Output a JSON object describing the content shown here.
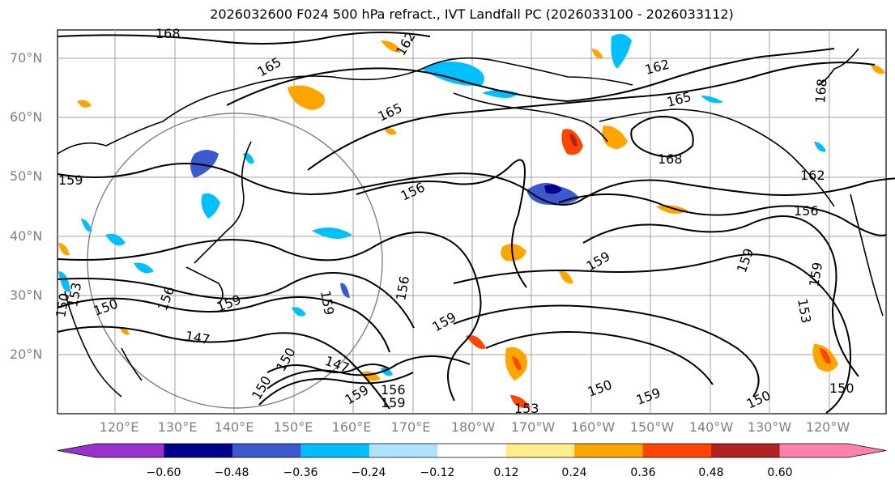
{
  "title": "2026032600 F024 500 hPa refract., IVT Landfall PC (2026033100 - 2026033112)",
  "lat_labels": [
    "70°N",
    "60°N",
    "50°N",
    "40°N",
    "30°N",
    "20°N"
  ],
  "lon_labels": [
    "120°E",
    "130°E",
    "140°E",
    "150°E",
    "160°E",
    "170°E",
    "180°W",
    "170°W",
    "160°W",
    "150°W",
    "140°W",
    "130°W",
    "120°W"
  ],
  "contour_labels": [
    "168",
    "165",
    "162",
    "165",
    "162",
    "168",
    "165",
    "168",
    "159",
    "156",
    "162",
    "156",
    "159",
    "159",
    "159",
    "156",
    "150",
    "159",
    "147",
    "159",
    "147",
    "150",
    "159",
    "156",
    "159",
    "156",
    "159",
    "153",
    "150",
    "159",
    "150",
    "153",
    "150",
    "150",
    "150",
    "153"
  ],
  "colorbar": {
    "ticks": [
      "−0.60",
      "−0.48",
      "−0.36",
      "−0.24",
      "−0.12",
      "0.12",
      "0.24",
      "0.36",
      "0.48",
      "0.60"
    ],
    "colors": [
      "#9932cc",
      "#00008b",
      "#3a5acd",
      "#00bfff",
      "#b0e2ff",
      "#ffffff",
      "#ffec8b",
      "#ffa500",
      "#ff4500",
      "#b22222",
      "#ff82ab"
    ],
    "under_color": "#9932cc",
    "over_color": "#ff82ab"
  }
}
